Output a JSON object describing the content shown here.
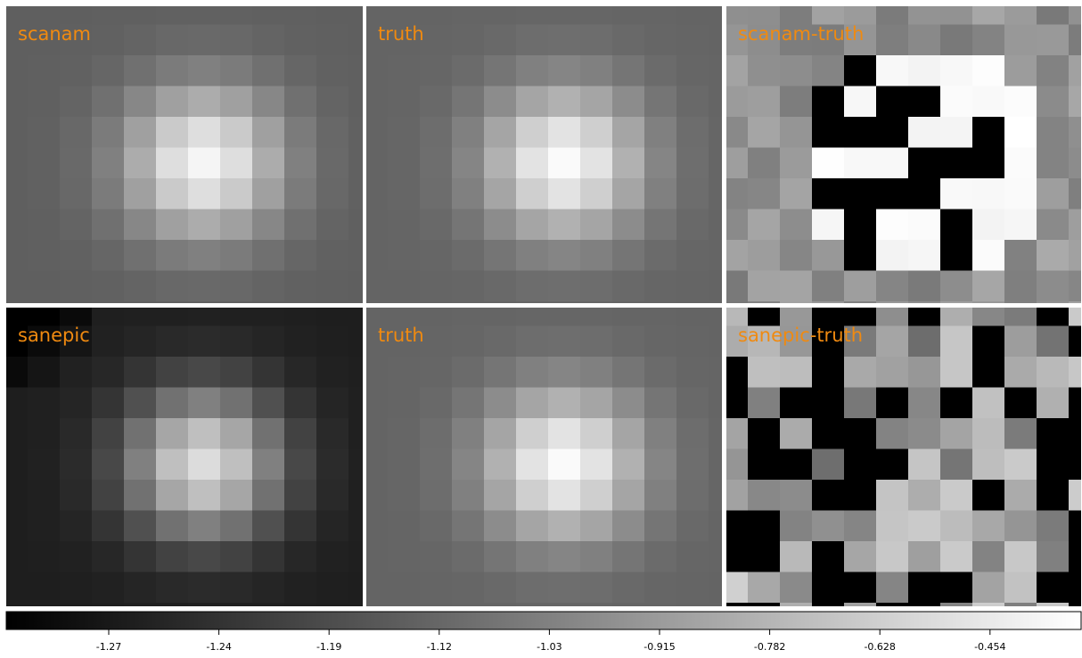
{
  "panels": [
    {
      "label": "scanam"
    },
    {
      "label": "truth"
    },
    {
      "label": "scanam-truth"
    },
    {
      "label": "sanepic"
    },
    {
      "label": "truth"
    },
    {
      "label": "sanepic-truth"
    }
  ],
  "colorbar": {
    "ticks": [
      "-1.27",
      "-1.24",
      "-1.19",
      "-1.12",
      "-1.03",
      "-0.915",
      "-0.782",
      "-0.628",
      "-0.454"
    ]
  }
}
